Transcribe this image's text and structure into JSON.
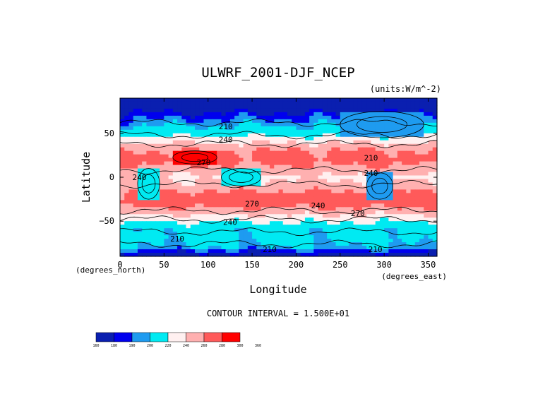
{
  "chart_data": {
    "type": "heatmap",
    "title": "ULWRF_2001-DJF_NCEP",
    "units": "(units:W/m^-2)",
    "xlabel": "Longitude",
    "ylabel": "Latitude",
    "x_unit_label": "(degrees_east)",
    "y_unit_label": "(degrees_north)",
    "xlim": [
      0,
      360
    ],
    "ylim": [
      -90,
      90
    ],
    "x_ticks": [
      "0",
      "50",
      "100",
      "150",
      "200",
      "250",
      "300",
      "350"
    ],
    "x_tick_values": [
      0,
      50,
      100,
      150,
      200,
      250,
      300,
      350
    ],
    "y_ticks": [
      "50",
      "0",
      "−50"
    ],
    "y_tick_values": [
      50,
      0,
      -50
    ],
    "contour_interval_text": "CONTOUR INTERVAL = 1.500E+01",
    "contour_labels": [
      {
        "text": "240",
        "lon": 120,
        "lat": 43
      },
      {
        "text": "210",
        "lon": 120,
        "lat": 58
      },
      {
        "text": "270",
        "lon": 95,
        "lat": 17
      },
      {
        "text": "240",
        "lon": 22,
        "lat": 0
      },
      {
        "text": "240",
        "lon": 285,
        "lat": 5
      },
      {
        "text": "210",
        "lon": 285,
        "lat": 22
      },
      {
        "text": "270",
        "lon": 150,
        "lat": -30
      },
      {
        "text": "240",
        "lon": 125,
        "lat": -51
      },
      {
        "text": "240",
        "lon": 225,
        "lat": -32
      },
      {
        "text": "270",
        "lon": 270,
        "lat": -41
      },
      {
        "text": "210",
        "lon": 65,
        "lat": -70
      },
      {
        "text": "210",
        "lon": 170,
        "lat": -82
      },
      {
        "text": "210",
        "lon": 290,
        "lat": -82
      }
    ],
    "colorbar": {
      "levels": [
        160,
        180,
        190,
        200,
        220,
        240,
        260,
        280,
        300,
        360
      ],
      "level_labels": [
        "160",
        "180",
        "190",
        "200",
        "220",
        "240",
        "260",
        "280",
        "300",
        "360"
      ],
      "colors": [
        "#0a1fb0",
        "#0000ee",
        "#1e9bf0",
        "#00eaf2",
        "#fff0f0",
        "#ffb0b0",
        "#ff5a5a",
        "#ff0000"
      ]
    },
    "zonal_profile": [
      {
        "lat": 90,
        "value": 160
      },
      {
        "lat": 80,
        "value": 170
      },
      {
        "lat": 70,
        "value": 185
      },
      {
        "lat": 60,
        "value": 198
      },
      {
        "lat": 50,
        "value": 212
      },
      {
        "lat": 40,
        "value": 238
      },
      {
        "lat": 30,
        "value": 262
      },
      {
        "lat": 20,
        "value": 268
      },
      {
        "lat": 10,
        "value": 255
      },
      {
        "lat": 0,
        "value": 238
      },
      {
        "lat": -10,
        "value": 248
      },
      {
        "lat": -20,
        "value": 268
      },
      {
        "lat": -30,
        "value": 270
      },
      {
        "lat": -40,
        "value": 248
      },
      {
        "lat": -50,
        "value": 222
      },
      {
        "lat": -60,
        "value": 205
      },
      {
        "lat": -70,
        "value": 205
      },
      {
        "lat": -80,
        "value": 198
      },
      {
        "lat": -90,
        "value": 170
      }
    ],
    "regional_features": [
      {
        "lon": [
          20,
          45
        ],
        "lat": [
          -25,
          10
        ],
        "value": 205
      },
      {
        "lon": [
          115,
          160
        ],
        "lat": [
          -10,
          10
        ],
        "value": 205
      },
      {
        "lon": [
          280,
          310
        ],
        "lat": [
          -25,
          5
        ],
        "value": 195
      },
      {
        "lon": [
          60,
          110
        ],
        "lat": [
          15,
          30
        ],
        "value": 300
      },
      {
        "lon": [
          250,
          345
        ],
        "lat": [
          45,
          75
        ],
        "value": 190
      }
    ]
  }
}
